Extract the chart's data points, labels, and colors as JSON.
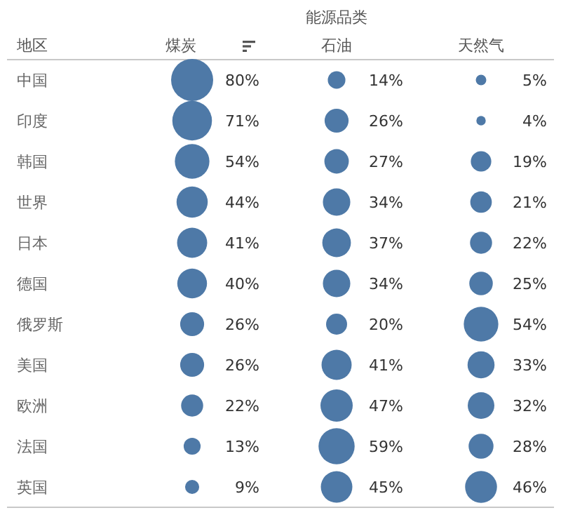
{
  "chart_data": {
    "type": "heatmap",
    "xlabel": "能源品类",
    "ylabel": "地区",
    "categories": [
      "煤炭",
      "石油",
      "天然气"
    ],
    "y_categories": [
      "中国",
      "印度",
      "韩国",
      "世界",
      "日本",
      "德国",
      "俄罗斯",
      "美国",
      "欧洲",
      "法国",
      "英国"
    ],
    "cells": [
      [
        80,
        14,
        5
      ],
      [
        71,
        26,
        4
      ],
      [
        54,
        27,
        19
      ],
      [
        44,
        34,
        21
      ],
      [
        41,
        37,
        22
      ],
      [
        40,
        34,
        25
      ],
      [
        26,
        20,
        54
      ],
      [
        26,
        41,
        33
      ],
      [
        22,
        47,
        32
      ],
      [
        13,
        59,
        28
      ],
      [
        9,
        45,
        46
      ]
    ],
    "cell_labels": [
      [
        "80%",
        "14%",
        "5%"
      ],
      [
        "71%",
        "26%",
        "4%"
      ],
      [
        "54%",
        "27%",
        "19%"
      ],
      [
        "44%",
        "34%",
        "21%"
      ],
      [
        "41%",
        "37%",
        "22%"
      ],
      [
        "40%",
        "34%",
        "25%"
      ],
      [
        "26%",
        "20%",
        "54%"
      ],
      [
        "26%",
        "41%",
        "33%"
      ],
      [
        "22%",
        "47%",
        "32%"
      ],
      [
        "13%",
        "59%",
        "28%"
      ],
      [
        "9%",
        "45%",
        "46%"
      ]
    ],
    "color": "#4e79a7",
    "data_labels": true
  }
}
